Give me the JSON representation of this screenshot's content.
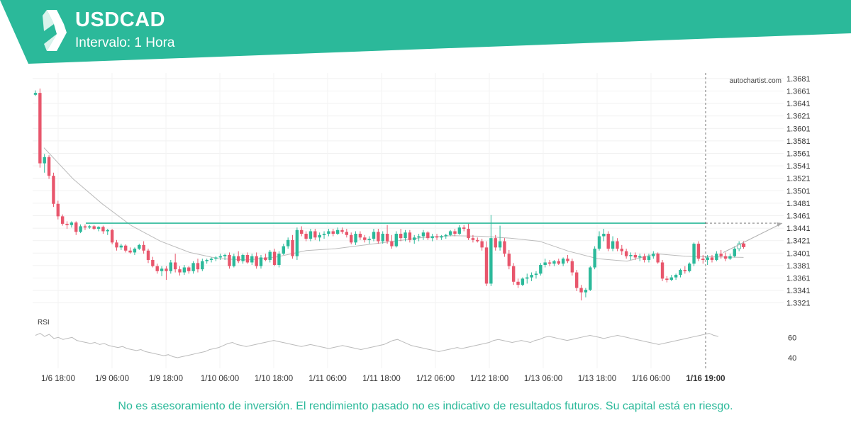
{
  "header": {
    "symbol": "USDCAD",
    "interval": "Intervalo: 1 Hora",
    "brand_color": "#2bb99a"
  },
  "footer": {
    "disclaimer": "No es asesoramiento de inversión. El rendimiento pasado no es indicativo de resultados futuros. Su capital está en riesgo."
  },
  "chart_data": [
    {
      "type": "candlestick",
      "watermark": "autochartist.com",
      "y_ticks": [
        "1.3681",
        "1.3661",
        "1.3641",
        "1.3621",
        "1.3601",
        "1.3581",
        "1.3561",
        "1.3541",
        "1.3521",
        "1.3501",
        "1.3481",
        "1.3461",
        "1.3441",
        "1.3421",
        "1.3401",
        "1.3381",
        "1.3361",
        "1.3341",
        "1.3321"
      ],
      "ylim": [
        1.3307,
        1.369
      ],
      "x_ticks": [
        "1/6 18:00",
        "1/9 06:00",
        "1/9 18:00",
        "1/10 06:00",
        "1/10 18:00",
        "1/11 06:00",
        "1/11 18:00",
        "1/12 06:00",
        "1/12 18:00",
        "1/13 06:00",
        "1/13 18:00",
        "1/16 06:00"
      ],
      "current_time_label": "1/16 19:00",
      "resistance_level": 1.3449,
      "projection": {
        "from": 1.3402,
        "to": 1.3449
      },
      "colors": {
        "up": "#2bb99a",
        "down": "#e8566c",
        "level": "#2bb99a",
        "ma": "#bbbbbb"
      },
      "ohlc": [
        [
          1.3655,
          1.3662,
          1.3653,
          1.3658
        ],
        [
          1.3658,
          1.3665,
          1.3538,
          1.3545
        ],
        [
          1.3545,
          1.356,
          1.353,
          1.3555
        ],
        [
          1.3555,
          1.3558,
          1.352,
          1.3525
        ],
        [
          1.3525,
          1.353,
          1.3475,
          1.348
        ],
        [
          1.348,
          1.3485,
          1.3455,
          1.346
        ],
        [
          1.346,
          1.3463,
          1.3445,
          1.3448
        ],
        [
          1.3448,
          1.3452,
          1.344,
          1.3446
        ],
        [
          1.3446,
          1.3452,
          1.3442,
          1.345
        ],
        [
          1.345,
          1.3452,
          1.343,
          1.3435
        ],
        [
          1.3435,
          1.3447,
          1.3433,
          1.3444
        ],
        [
          1.3444,
          1.3447,
          1.3438,
          1.3442
        ],
        [
          1.3442,
          1.3446,
          1.344,
          1.3444
        ],
        [
          1.3444,
          1.3446,
          1.3438,
          1.344
        ],
        [
          1.344,
          1.3444,
          1.3436,
          1.3443
        ],
        [
          1.3443,
          1.3445,
          1.3432,
          1.3436
        ],
        [
          1.3436,
          1.344,
          1.343,
          1.3438
        ],
        [
          1.3438,
          1.344,
          1.3415,
          1.3418
        ],
        [
          1.3418,
          1.3422,
          1.3405,
          1.341
        ],
        [
          1.341,
          1.3416,
          1.3406,
          1.3413
        ],
        [
          1.3413,
          1.3415,
          1.3402,
          1.3405
        ],
        [
          1.3405,
          1.341,
          1.34,
          1.3402
        ],
        [
          1.3402,
          1.341,
          1.3398,
          1.3408
        ],
        [
          1.3408,
          1.3416,
          1.3406,
          1.3414
        ],
        [
          1.3414,
          1.342,
          1.34,
          1.3405
        ],
        [
          1.3405,
          1.3408,
          1.3385,
          1.339
        ],
        [
          1.339,
          1.3395,
          1.3378,
          1.338
        ],
        [
          1.338,
          1.3384,
          1.3368,
          1.3372
        ],
        [
          1.3372,
          1.338,
          1.3364,
          1.3376
        ],
        [
          1.3376,
          1.338,
          1.3358,
          1.3372
        ],
        [
          1.3372,
          1.339,
          1.3368,
          1.3386
        ],
        [
          1.3386,
          1.34,
          1.337,
          1.3375
        ],
        [
          1.3375,
          1.338,
          1.3365,
          1.337
        ],
        [
          1.337,
          1.3382,
          1.3366,
          1.3378
        ],
        [
          1.3378,
          1.338,
          1.3368,
          1.3372
        ],
        [
          1.3372,
          1.3388,
          1.3368,
          1.3385
        ],
        [
          1.3385,
          1.3392,
          1.337,
          1.3375
        ],
        [
          1.3375,
          1.3392,
          1.3372,
          1.3388
        ],
        [
          1.3388,
          1.3392,
          1.3384,
          1.339
        ],
        [
          1.339,
          1.3394,
          1.3386,
          1.3392
        ],
        [
          1.3392,
          1.3396,
          1.3388,
          1.3394
        ],
        [
          1.3394,
          1.34,
          1.339,
          1.3396
        ],
        [
          1.3396,
          1.34,
          1.339,
          1.3398
        ],
        [
          1.3398,
          1.3402,
          1.3376,
          1.338
        ],
        [
          1.338,
          1.34,
          1.3378,
          1.3396
        ],
        [
          1.3396,
          1.3404,
          1.3385,
          1.3388
        ],
        [
          1.3388,
          1.34,
          1.3384,
          1.3398
        ],
        [
          1.3398,
          1.3402,
          1.3384,
          1.3386
        ],
        [
          1.3386,
          1.34,
          1.3382,
          1.3396
        ],
        [
          1.3396,
          1.3402,
          1.3376,
          1.338
        ],
        [
          1.338,
          1.3398,
          1.3376,
          1.3394
        ],
        [
          1.3394,
          1.34,
          1.3388,
          1.339
        ],
        [
          1.339,
          1.3406,
          1.3386,
          1.3403
        ],
        [
          1.3403,
          1.3408,
          1.338,
          1.3382
        ],
        [
          1.3382,
          1.3404,
          1.3378,
          1.34
        ],
        [
          1.34,
          1.3416,
          1.3398,
          1.3412
        ],
        [
          1.3412,
          1.3426,
          1.3408,
          1.3422
        ],
        [
          1.3422,
          1.343,
          1.3392,
          1.3396
        ],
        [
          1.3396,
          1.3442,
          1.339,
          1.3438
        ],
        [
          1.3438,
          1.3444,
          1.3428,
          1.3432
        ],
        [
          1.3432,
          1.3436,
          1.342,
          1.3424
        ],
        [
          1.3424,
          1.344,
          1.342,
          1.3436
        ],
        [
          1.3436,
          1.344,
          1.3422,
          1.3426
        ],
        [
          1.3426,
          1.3434,
          1.342,
          1.343
        ],
        [
          1.343,
          1.3436,
          1.3424,
          1.3432
        ],
        [
          1.3432,
          1.344,
          1.3428,
          1.3436
        ],
        [
          1.3436,
          1.344,
          1.3428,
          1.3432
        ],
        [
          1.3432,
          1.3442,
          1.343,
          1.3438
        ],
        [
          1.3438,
          1.3442,
          1.3432,
          1.3435
        ],
        [
          1.3435,
          1.344,
          1.3426,
          1.343
        ],
        [
          1.343,
          1.3434,
          1.3415,
          1.3418
        ],
        [
          1.3418,
          1.3436,
          1.3414,
          1.3432
        ],
        [
          1.3432,
          1.3436,
          1.3422,
          1.3426
        ],
        [
          1.3426,
          1.343,
          1.3418,
          1.3422
        ],
        [
          1.3422,
          1.3428,
          1.3416,
          1.3424
        ],
        [
          1.3424,
          1.344,
          1.342,
          1.3435
        ],
        [
          1.3435,
          1.344,
          1.3416,
          1.342
        ],
        [
          1.342,
          1.3436,
          1.3416,
          1.3432
        ],
        [
          1.3432,
          1.3446,
          1.3416,
          1.342
        ],
        [
          1.342,
          1.343,
          1.3408,
          1.3412
        ],
        [
          1.3412,
          1.3436,
          1.341,
          1.3432
        ],
        [
          1.3432,
          1.344,
          1.342,
          1.3425
        ],
        [
          1.3425,
          1.3438,
          1.342,
          1.3434
        ],
        [
          1.3434,
          1.3438,
          1.3418,
          1.3422
        ],
        [
          1.3422,
          1.343,
          1.3416,
          1.3426
        ],
        [
          1.3426,
          1.3432,
          1.342,
          1.3428
        ],
        [
          1.3428,
          1.3438,
          1.3422,
          1.3434
        ],
        [
          1.3434,
          1.3436,
          1.3422,
          1.3425
        ],
        [
          1.3425,
          1.3432,
          1.342,
          1.3428
        ],
        [
          1.3428,
          1.3432,
          1.3422,
          1.3426
        ],
        [
          1.3426,
          1.343,
          1.3422,
          1.3428
        ],
        [
          1.3428,
          1.3432,
          1.3424,
          1.343
        ],
        [
          1.343,
          1.3438,
          1.3428,
          1.3436
        ],
        [
          1.3436,
          1.344,
          1.3428,
          1.3432
        ],
        [
          1.3432,
          1.3446,
          1.343,
          1.3442
        ],
        [
          1.3442,
          1.3446,
          1.3436,
          1.344
        ],
        [
          1.344,
          1.3448,
          1.3422,
          1.3425
        ],
        [
          1.3425,
          1.343,
          1.3418,
          1.3422
        ],
        [
          1.3422,
          1.3426,
          1.3418,
          1.342
        ],
        [
          1.342,
          1.3424,
          1.3405,
          1.341
        ],
        [
          1.341,
          1.342,
          1.3348,
          1.3352
        ],
        [
          1.3352,
          1.3462,
          1.3348,
          1.3425
        ],
        [
          1.3425,
          1.343,
          1.3405,
          1.341
        ],
        [
          1.341,
          1.3445,
          1.3405,
          1.342
        ],
        [
          1.342,
          1.3425,
          1.3395,
          1.34
        ],
        [
          1.34,
          1.3406,
          1.3375,
          1.338
        ],
        [
          1.338,
          1.3385,
          1.335,
          1.3355
        ],
        [
          1.3355,
          1.336,
          1.3345,
          1.335
        ],
        [
          1.335,
          1.3362,
          1.3348,
          1.336
        ],
        [
          1.336,
          1.3368,
          1.3352,
          1.3362
        ],
        [
          1.3362,
          1.337,
          1.3356,
          1.3366
        ],
        [
          1.3366,
          1.3372,
          1.336,
          1.3368
        ],
        [
          1.3368,
          1.3385,
          1.3365,
          1.3382
        ],
        [
          1.3382,
          1.3392,
          1.3378,
          1.3386
        ],
        [
          1.3386,
          1.339,
          1.338,
          1.3384
        ],
        [
          1.3384,
          1.339,
          1.338,
          1.3388
        ],
        [
          1.3388,
          1.3392,
          1.3382,
          1.3384
        ],
        [
          1.3384,
          1.3394,
          1.338,
          1.3392
        ],
        [
          1.3392,
          1.3398,
          1.3385,
          1.3388
        ],
        [
          1.3388,
          1.3392,
          1.3365,
          1.337
        ],
        [
          1.337,
          1.3374,
          1.334,
          1.3345
        ],
        [
          1.3345,
          1.335,
          1.3325,
          1.3338
        ],
        [
          1.3338,
          1.3345,
          1.333,
          1.3342
        ],
        [
          1.3342,
          1.338,
          1.334,
          1.3378
        ],
        [
          1.3378,
          1.3412,
          1.3375,
          1.3408
        ],
        [
          1.3408,
          1.3436,
          1.3405,
          1.3428
        ],
        [
          1.3428,
          1.344,
          1.342,
          1.3432
        ],
        [
          1.3432,
          1.3436,
          1.3404,
          1.3408
        ],
        [
          1.3408,
          1.3428,
          1.3404,
          1.342
        ],
        [
          1.342,
          1.3425,
          1.3404,
          1.3408
        ],
        [
          1.3408,
          1.3414,
          1.3398,
          1.3404
        ],
        [
          1.3404,
          1.3408,
          1.3392,
          1.3396
        ],
        [
          1.3396,
          1.3402,
          1.339,
          1.3398
        ],
        [
          1.3398,
          1.3402,
          1.339,
          1.3394
        ],
        [
          1.3394,
          1.34,
          1.3388,
          1.3396
        ],
        [
          1.3396,
          1.34,
          1.3386,
          1.339
        ],
        [
          1.339,
          1.34,
          1.3386,
          1.3396
        ],
        [
          1.3396,
          1.3404,
          1.3392,
          1.34
        ],
        [
          1.34,
          1.3402,
          1.3384,
          1.3386
        ],
        [
          1.3386,
          1.339,
          1.3356,
          1.336
        ],
        [
          1.336,
          1.3364,
          1.3354,
          1.3358
        ],
        [
          1.3358,
          1.3366,
          1.3356,
          1.3362
        ],
        [
          1.3362,
          1.3368,
          1.3358,
          1.3366
        ],
        [
          1.3366,
          1.3376,
          1.3362,
          1.3374
        ],
        [
          1.3374,
          1.338,
          1.3368,
          1.3372
        ],
        [
          1.3372,
          1.3386,
          1.337,
          1.3384
        ],
        [
          1.3384,
          1.3418,
          1.338,
          1.3416
        ],
        [
          1.3416,
          1.342,
          1.3388,
          1.3392
        ],
        [
          1.3392,
          1.3398,
          1.3384,
          1.339
        ],
        [
          1.339,
          1.3398,
          1.3382,
          1.3394
        ],
        [
          1.3394,
          1.3398,
          1.3386,
          1.339
        ],
        [
          1.339,
          1.3404,
          1.3388,
          1.34
        ],
        [
          1.34,
          1.3406,
          1.3392,
          1.3396
        ],
        [
          1.3396,
          1.3402,
          1.3388,
          1.3392
        ],
        [
          1.3392,
          1.34,
          1.339,
          1.3396
        ],
        [
          1.3396,
          1.3412,
          1.3394,
          1.3408
        ],
        [
          1.3408,
          1.342,
          1.3404,
          1.3416
        ],
        [
          1.3416,
          1.342,
          1.3408,
          1.3411
        ]
      ],
      "moving_average": [
        1.357,
        1.352,
        1.348,
        1.3445,
        1.342,
        1.3402,
        1.3392,
        1.339,
        1.3395,
        1.3405,
        1.3408,
        1.3414,
        1.342,
        1.3426,
        1.3429,
        1.3428,
        1.3425,
        1.342,
        1.3404,
        1.3392,
        1.3388,
        1.34,
        1.3396,
        1.3395,
        1.3394
      ],
      "rsi": {
        "label": "RSI",
        "y_ticks": [
          "60",
          "40"
        ],
        "ylim": [
          33,
          70
        ],
        "values": [
          62,
          64,
          61,
          63,
          59,
          60,
          58,
          59,
          60,
          57,
          56,
          55,
          54,
          55,
          53,
          54,
          52,
          51,
          50,
          51,
          49,
          48,
          47,
          48,
          46,
          45,
          44,
          43,
          42,
          43,
          41,
          40,
          41,
          42,
          43,
          44,
          45,
          46,
          48,
          49,
          50,
          52,
          54,
          55,
          53,
          52,
          51,
          52,
          53,
          54,
          55,
          56,
          57,
          56,
          55,
          54,
          53,
          52,
          51,
          52,
          53,
          52,
          51,
          50,
          49,
          50,
          51,
          52,
          51,
          50,
          49,
          48,
          49,
          50,
          51,
          52,
          53,
          55,
          57,
          58,
          56,
          54,
          52,
          51,
          50,
          49,
          48,
          47,
          46,
          47,
          48,
          49,
          50,
          49,
          50,
          51,
          52,
          53,
          54,
          55,
          57,
          58,
          57,
          56,
          55,
          56,
          57,
          56,
          55,
          57,
          58,
          60,
          61,
          60,
          59,
          58,
          57,
          58,
          59,
          60,
          61,
          62,
          61,
          60,
          59,
          60,
          61,
          62,
          61,
          60,
          59,
          58,
          57,
          56,
          55,
          54,
          53,
          54,
          55,
          56,
          57,
          58,
          59,
          60,
          61,
          62,
          63,
          64,
          62,
          61
        ]
      }
    }
  ]
}
